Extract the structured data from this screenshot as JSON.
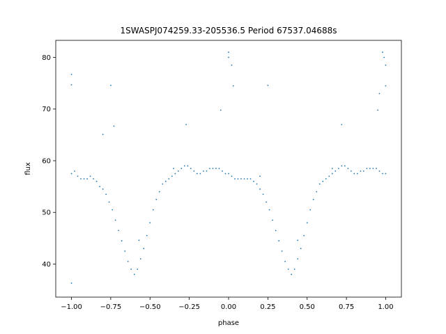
{
  "chart_data": {
    "type": "scatter",
    "title": "1SWASPJ074259.33-205536.5 Period 67537.04688s",
    "xlabel": "phase",
    "ylabel": "flux",
    "xlim": [
      -1.1,
      1.1
    ],
    "ylim": [
      33.6,
      83.3
    ],
    "x_ticks": [
      -1.0,
      -0.75,
      -0.5,
      -0.25,
      0.0,
      0.25,
      0.5,
      0.75,
      1.0
    ],
    "x_tick_labels": [
      "−1.00",
      "−0.75",
      "−0.50",
      "−0.25",
      "0.00",
      "0.25",
      "0.50",
      "0.75",
      "1.00"
    ],
    "y_ticks": [
      40,
      50,
      60,
      70,
      80
    ],
    "y_tick_labels": [
      "40",
      "50",
      "60",
      "70",
      "80"
    ],
    "grid": false,
    "legend": "none",
    "point_color": "#1f77b4",
    "series": [
      {
        "x": [
          -1.0,
          -0.98,
          -0.96,
          -0.94,
          -0.92,
          -0.9,
          -0.88,
          -0.86,
          -0.84,
          -0.82,
          -0.8,
          -0.78,
          -0.76,
          -0.74,
          -0.72,
          -0.7,
          -0.68,
          -0.66,
          -0.64,
          -0.62,
          -0.6,
          -0.58,
          -0.56,
          -0.54,
          -0.52,
          -0.5,
          -0.48,
          -0.46,
          -0.44,
          -0.42,
          -0.4,
          -0.38,
          -0.36,
          -0.34,
          -0.32,
          -0.3,
          -0.28,
          -0.26,
          -0.24,
          -0.22,
          -0.2,
          -0.18,
          -0.16,
          -0.14,
          -0.12,
          -0.1,
          -0.08,
          -0.06,
          -0.04,
          -0.02,
          0.0,
          0.02,
          0.04,
          0.06,
          0.08,
          0.1,
          0.12,
          0.14,
          0.16,
          0.18,
          0.2,
          0.22,
          0.24,
          0.26,
          0.28,
          0.3,
          0.32,
          0.34,
          0.36,
          0.38,
          0.4,
          0.42,
          0.44,
          0.46,
          0.48,
          0.5,
          0.52,
          0.54,
          0.56,
          0.58,
          0.6,
          0.62,
          0.64,
          0.66,
          0.68,
          0.7,
          0.72,
          0.74,
          0.76,
          0.78,
          0.8,
          0.82,
          0.84,
          0.86,
          0.88,
          0.9,
          0.92,
          0.94,
          0.96,
          0.98,
          1.0
        ],
        "y": [
          57.5,
          58.0,
          57.0,
          56.5,
          56.5,
          56.5,
          57.0,
          56.5,
          56.0,
          55.0,
          54.5,
          53.5,
          52.0,
          50.5,
          48.5,
          46.5,
          44.5,
          42.5,
          40.5,
          39.0,
          38.0,
          39.0,
          41.0,
          43.0,
          45.5,
          48.0,
          50.5,
          52.5,
          54.0,
          55.5,
          56.0,
          56.5,
          57.0,
          57.5,
          58.0,
          58.5,
          59.0,
          59.0,
          58.5,
          58.0,
          57.5,
          57.5,
          58.0,
          58.0,
          58.5,
          58.5,
          58.5,
          58.5,
          58.0,
          57.5,
          57.5,
          57.0,
          56.5,
          56.5,
          56.5,
          56.5,
          56.5,
          56.5,
          56.0,
          55.5,
          54.5,
          53.5,
          52.0,
          50.5,
          48.5,
          46.5,
          44.5,
          42.5,
          40.5,
          39.0,
          38.0,
          39.0,
          41.0,
          43.0,
          45.5,
          48.0,
          50.5,
          52.5,
          54.0,
          55.5,
          56.0,
          56.5,
          57.0,
          57.5,
          58.0,
          58.5,
          59.0,
          59.0,
          58.5,
          58.0,
          57.5,
          57.5,
          58.0,
          58.0,
          58.5,
          58.5,
          58.5,
          58.5,
          58.0,
          57.5,
          57.5
        ]
      },
      {
        "x": [
          -1.0,
          -1.0,
          -1.0,
          -0.8,
          -0.75,
          -0.73,
          -0.57,
          -0.35,
          -0.27,
          -0.05,
          0.0,
          0.0,
          0.02,
          0.03,
          0.2,
          0.25,
          0.44,
          0.66,
          0.72,
          0.95,
          0.96,
          0.98,
          0.99,
          1.0,
          1.0
        ],
        "y": [
          76.7,
          74.7,
          36.3,
          65.1,
          74.6,
          66.7,
          44.6,
          58.5,
          67.0,
          69.8,
          81.0,
          80.0,
          78.5,
          74.5,
          57.0,
          74.6,
          44.6,
          58.5,
          67.0,
          69.8,
          73.0,
          81.0,
          80.0,
          78.5,
          74.5
        ]
      }
    ]
  }
}
